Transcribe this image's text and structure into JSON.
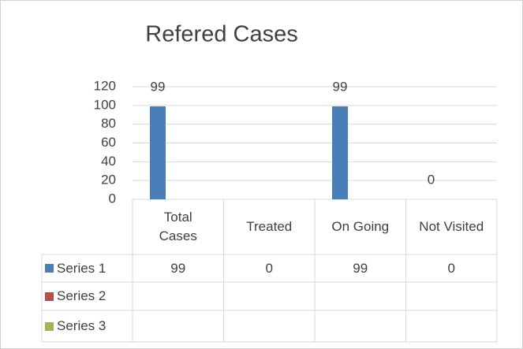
{
  "chart_data": {
    "type": "bar",
    "title": "Refered Cases",
    "categories": [
      "Total Cases",
      "Treated",
      "On Going",
      "Not Visited"
    ],
    "series": [
      {
        "name": "Series 1",
        "color": "#4a7ebb",
        "values": [
          99,
          0,
          99,
          0
        ],
        "value_labels": [
          "99",
          null,
          "99",
          "0"
        ]
      },
      {
        "name": "Series 2",
        "color": "#be4b48",
        "values": [
          null,
          null,
          null,
          null
        ]
      },
      {
        "name": "Series 3",
        "color": "#98b954",
        "values": [
          null,
          null,
          null,
          null
        ]
      }
    ],
    "ylim": [
      0,
      120
    ],
    "yticks": [
      0,
      20,
      40,
      60,
      80,
      100,
      120
    ],
    "grid": true,
    "data_table": true
  }
}
